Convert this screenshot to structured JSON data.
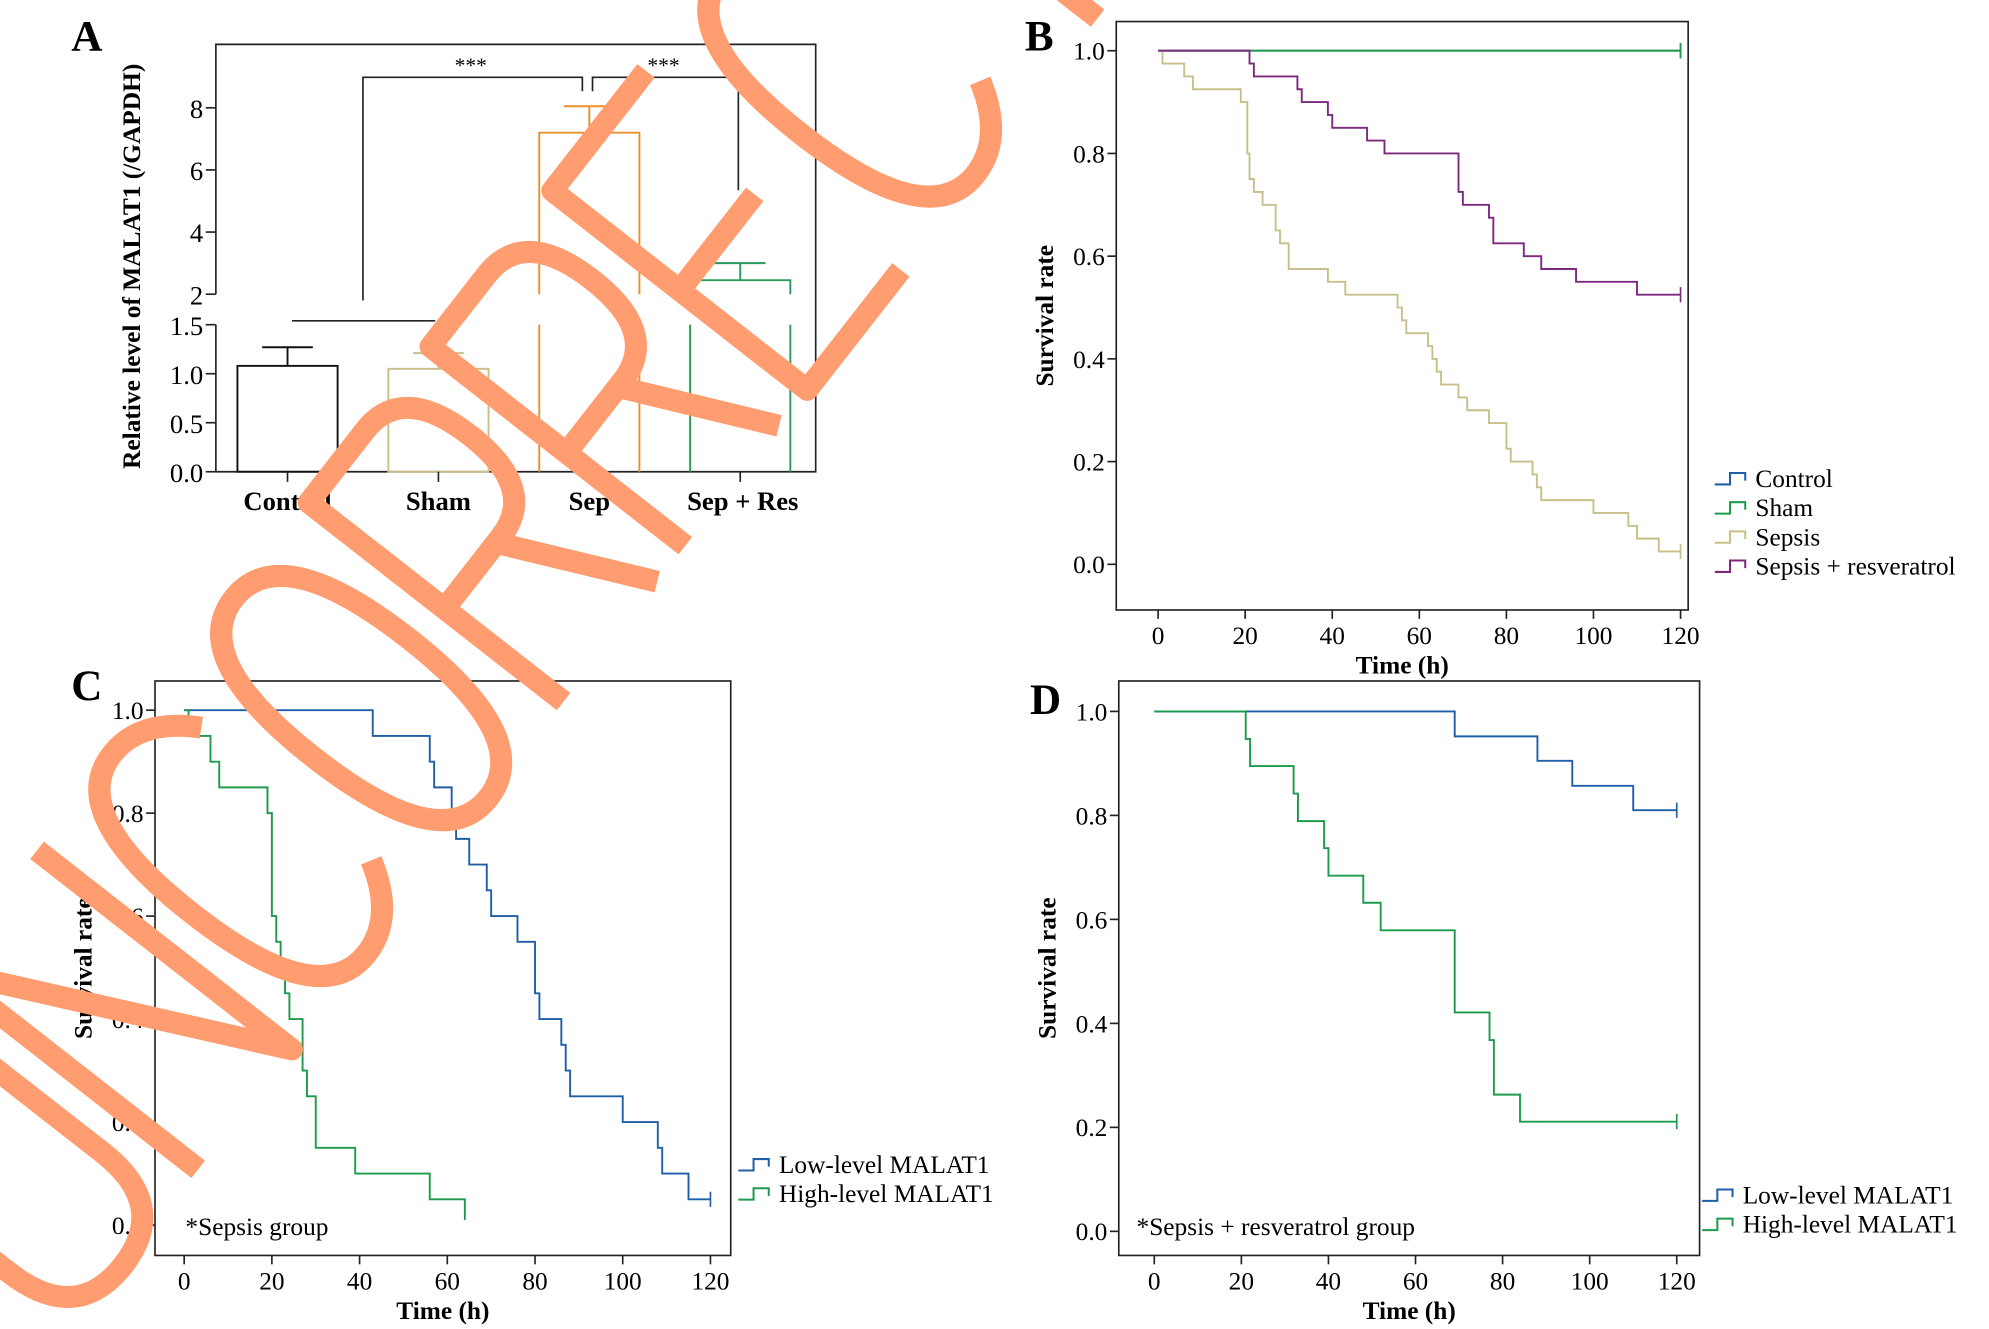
{
  "watermark": "UNCORRECTED",
  "colors": {
    "control": "#1f5fa8",
    "sham": "#1e9a4c",
    "sepsis": "#c8bf8a",
    "sepres": "#7b2a7e",
    "orange": "#e8902c",
    "green": "#2a9a5a",
    "black": "#111111",
    "watermark": "#ff9c70"
  },
  "chart_data": [
    {
      "panel": "A",
      "type": "bar",
      "ylabel": "Relative level of MALAT1 (/GAPDH)",
      "categories": [
        "Control",
        "Sham",
        "Sep",
        "Sep + Res"
      ],
      "values": [
        1.08,
        1.05,
        7.2,
        2.45
      ],
      "errors_upper": [
        1.27,
        1.21,
        8.05,
        3.0
      ],
      "yaxis_broken": true,
      "ylim_lower": [
        0,
        1.5
      ],
      "ylim_upper": [
        2,
        9
      ],
      "yticks_lower": [
        "0.0",
        "0.5",
        "1.0",
        "1.5"
      ],
      "yticks_upper": [
        "2",
        "4",
        "6",
        "8"
      ],
      "significance": [
        {
          "from": "Control+Sham",
          "to": "Sep",
          "label": "***"
        },
        {
          "from": "Sep",
          "to": "Sep + Res",
          "label": "***"
        }
      ]
    },
    {
      "panel": "B",
      "type": "line",
      "xlabel": "Time (h)",
      "ylabel": "Survival rate",
      "xlim": [
        0,
        120
      ],
      "ylim": [
        0,
        1
      ],
      "xticks": [
        "0",
        "20",
        "40",
        "60",
        "80",
        "100",
        "120"
      ],
      "yticks": [
        "0.0",
        "0.2",
        "0.4",
        "0.6",
        "0.8",
        "1.0"
      ],
      "legend": "right",
      "series": [
        {
          "name": "Control",
          "color_key": "control",
          "steps": [
            [
              0,
              1.0
            ]
          ],
          "end": 120
        },
        {
          "name": "Sham",
          "color_key": "sham",
          "steps": [
            [
              0,
              1.0
            ]
          ],
          "end": 120
        },
        {
          "name": "Sepsis",
          "color_key": "sepsis",
          "steps": [
            [
              0,
              1.0
            ],
            [
              1,
              0.975
            ],
            [
              6,
              0.95
            ],
            [
              8,
              0.925
            ],
            [
              19,
              0.9
            ],
            [
              20.5,
              0.8
            ],
            [
              21,
              0.75
            ],
            [
              22,
              0.725
            ],
            [
              24,
              0.7
            ],
            [
              27,
              0.65
            ],
            [
              28,
              0.625
            ],
            [
              30,
              0.575
            ],
            [
              39,
              0.55
            ],
            [
              43,
              0.525
            ],
            [
              55,
              0.5
            ],
            [
              56,
              0.475
            ],
            [
              57,
              0.45
            ],
            [
              62,
              0.425
            ],
            [
              63,
              0.4
            ],
            [
              64,
              0.375
            ],
            [
              65,
              0.35
            ],
            [
              69,
              0.325
            ],
            [
              71,
              0.3
            ],
            [
              76,
              0.275
            ],
            [
              80,
              0.225
            ],
            [
              81,
              0.2
            ],
            [
              86,
              0.175
            ],
            [
              87,
              0.15
            ],
            [
              88,
              0.125
            ],
            [
              100,
              0.1
            ],
            [
              108,
              0.075
            ],
            [
              110,
              0.05
            ],
            [
              115,
              0.025
            ]
          ],
          "end": 120
        },
        {
          "name": "Sepsis + resveratrol",
          "color_key": "sepres",
          "steps": [
            [
              0,
              1.0
            ],
            [
              21,
              0.975
            ],
            [
              22,
              0.95
            ],
            [
              32,
              0.925
            ],
            [
              33,
              0.9
            ],
            [
              39,
              0.875
            ],
            [
              40,
              0.85
            ],
            [
              48,
              0.825
            ],
            [
              52,
              0.8
            ],
            [
              69,
              0.725
            ],
            [
              70,
              0.7
            ],
            [
              76,
              0.675
            ],
            [
              77,
              0.625
            ],
            [
              84,
              0.6
            ],
            [
              88,
              0.575
            ],
            [
              96,
              0.55
            ],
            [
              110,
              0.525
            ]
          ],
          "end": 120
        }
      ]
    },
    {
      "panel": "C",
      "type": "line",
      "xlabel": "Time (h)",
      "ylabel": "Survival rate",
      "annotation": "*Sepsis group",
      "xlim": [
        0,
        120
      ],
      "ylim": [
        0,
        1
      ],
      "xticks": [
        "0",
        "20",
        "40",
        "60",
        "80",
        "100",
        "120"
      ],
      "yticks": [
        "0.0",
        "0.2",
        "0.4",
        "0.6",
        "0.8",
        "1.0"
      ],
      "legend": "bottom-right",
      "series": [
        {
          "name": "Low-level MALAT1",
          "color_key": "control",
          "steps": [
            [
              0,
              1.0
            ],
            [
              43,
              0.95
            ],
            [
              56,
              0.9
            ],
            [
              57,
              0.85
            ],
            [
              61,
              0.8
            ],
            [
              62,
              0.75
            ],
            [
              65,
              0.7
            ],
            [
              69,
              0.65
            ],
            [
              70,
              0.6
            ],
            [
              76,
              0.55
            ],
            [
              80,
              0.45
            ],
            [
              81,
              0.4
            ],
            [
              86,
              0.35
            ],
            [
              87,
              0.3
            ],
            [
              88,
              0.25
            ],
            [
              100,
              0.2
            ],
            [
              108,
              0.15
            ],
            [
              109,
              0.1
            ],
            [
              115,
              0.05
            ]
          ],
          "end": 120
        },
        {
          "name": "High-level MALAT1",
          "color_key": "sham",
          "steps": [
            [
              0,
              1.0
            ],
            [
              1,
              0.95
            ],
            [
              6,
              0.9
            ],
            [
              8,
              0.85
            ],
            [
              19,
              0.8
            ],
            [
              20,
              0.6
            ],
            [
              21,
              0.55
            ],
            [
              22,
              0.5
            ],
            [
              23,
              0.45
            ],
            [
              24,
              0.4
            ],
            [
              27,
              0.3
            ],
            [
              28,
              0.25
            ],
            [
              30,
              0.15
            ],
            [
              39,
              0.1
            ],
            [
              56,
              0.05
            ],
            [
              64,
              0.01
            ]
          ],
          "end": 64
        }
      ]
    },
    {
      "panel": "D",
      "type": "line",
      "xlabel": "Time (h)",
      "ylabel": "Survival rate",
      "annotation": "*Sepsis + resveratrol group",
      "xlim": [
        0,
        120
      ],
      "ylim": [
        0,
        1
      ],
      "xticks": [
        "0",
        "20",
        "40",
        "60",
        "80",
        "100",
        "120"
      ],
      "yticks": [
        "0.0",
        "0.2",
        "0.4",
        "0.6",
        "0.8",
        "1.0"
      ],
      "legend": "bottom-right",
      "series": [
        {
          "name": "Low-level MALAT1",
          "color_key": "control",
          "steps": [
            [
              0,
              1.0
            ],
            [
              69,
              0.952
            ],
            [
              88,
              0.905
            ],
            [
              96,
              0.857
            ],
            [
              110,
              0.81
            ]
          ],
          "end": 120
        },
        {
          "name": "High-level MALAT1",
          "color_key": "sham",
          "steps": [
            [
              0,
              1.0
            ],
            [
              21,
              0.947
            ],
            [
              22,
              0.895
            ],
            [
              32,
              0.842
            ],
            [
              33,
              0.789
            ],
            [
              39,
              0.737
            ],
            [
              40,
              0.684
            ],
            [
              48,
              0.632
            ],
            [
              52,
              0.579
            ],
            [
              69,
              0.421
            ],
            [
              77,
              0.368
            ],
            [
              78,
              0.263
            ],
            [
              84,
              0.211
            ]
          ],
          "end": 120
        }
      ]
    }
  ]
}
